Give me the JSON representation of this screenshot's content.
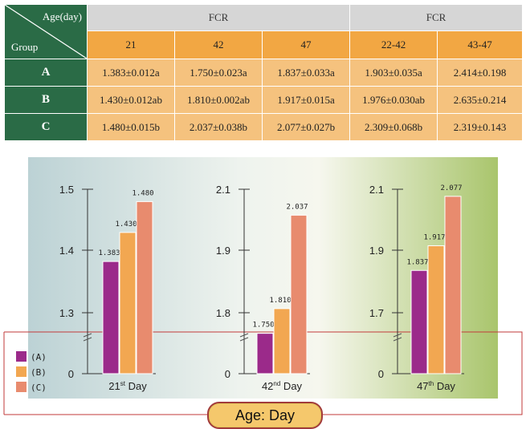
{
  "table": {
    "corner_top": "Age(day)",
    "corner_bottom": "Group",
    "group_headers": [
      "FCR",
      "FCR"
    ],
    "columns": [
      "21",
      "42",
      "47",
      "22-42",
      "43-47"
    ],
    "rows": [
      {
        "group": "A",
        "cells": [
          "1.383±0.012a",
          "1.750±0.023a",
          "1.837±0.033a",
          "1.903±0.035a",
          "2.414±0.198"
        ]
      },
      {
        "group": "B",
        "cells": [
          "1.430±0.012ab",
          "1.810±0.002ab",
          "1.917±0.015a",
          "1.976±0.030ab",
          "2.635±0.214"
        ]
      },
      {
        "group": "C",
        "cells": [
          "1.480±0.015b",
          "2.037±0.038b",
          "2.077±0.027b",
          "2.309±0.068b",
          "2.319±0.143"
        ]
      }
    ]
  },
  "chart_data": [
    {
      "type": "bar",
      "categories": [
        "(A)",
        "(B)",
        "(C)"
      ],
      "values": [
        1.383,
        1.43,
        1.48
      ],
      "data_labels": [
        "1.383",
        "1.430",
        "1.480"
      ],
      "xlabel_main": "21",
      "xlabel_sup": "st",
      "xlabel_tail": " Day",
      "yticks": [
        "1.5",
        "1.4",
        "1.3",
        "0"
      ],
      "ytick_values": [
        1.5,
        1.4,
        1.3
      ],
      "ylim": [
        1.25,
        1.5
      ],
      "axis_break": true
    },
    {
      "type": "bar",
      "categories": [
        "(A)",
        "(B)",
        "(C)"
      ],
      "values": [
        1.75,
        1.81,
        2.037
      ],
      "data_labels": [
        "1.750",
        "1.810",
        "2.037"
      ],
      "xlabel_main": "42",
      "xlabel_sup": "nd",
      "xlabel_tail": " Day",
      "yticks": [
        "2.1",
        "1.9",
        "1.8",
        "0"
      ],
      "ytick_values": [
        2.1,
        1.9,
        1.8
      ],
      "ylim": [
        1.73,
        2.1
      ],
      "axis_break": true
    },
    {
      "type": "bar",
      "categories": [
        "(A)",
        "(B)",
        "(C)"
      ],
      "values": [
        1.837,
        1.917,
        2.077
      ],
      "data_labels": [
        "1.837",
        "1.917",
        "2.077"
      ],
      "xlabel_main": "47",
      "xlabel_sup": "th",
      "xlabel_tail": " Day",
      "yticks": [
        "2.1",
        "1.9",
        "1.7",
        "0"
      ],
      "ytick_values": [
        2.1,
        1.9,
        1.7
      ],
      "ylim": [
        1.6,
        2.1
      ],
      "axis_break": true
    }
  ],
  "legend": [
    {
      "label": "(A)",
      "color": "#9b2a8a"
    },
    {
      "label": "(B)",
      "color": "#f2a751"
    },
    {
      "label": "(C)",
      "color": "#e88b6e"
    }
  ],
  "colors": {
    "table_green": "#2a6b46",
    "header_grey": "#d6d6d6",
    "header_orange": "#f2a743",
    "cell_peach": "#f5c27e",
    "outline_red": "#c23a3a"
  },
  "footer_label": "Age: Day"
}
